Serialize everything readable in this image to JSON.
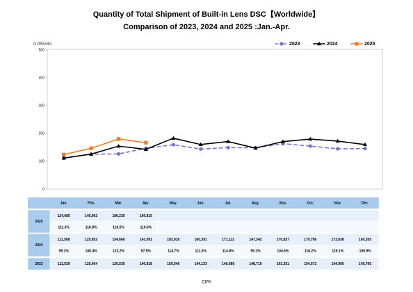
{
  "chart_data": {
    "type": "line",
    "title": "Quantity of Total Shipment of Built-in Lens DSC【Worldwide】",
    "subtitle": "Comparison of 2023, 2024 and 2025 :Jan.-Apr.",
    "y_label": "(1,000units)",
    "source": "CIPA",
    "categories": [
      "Jan.",
      "Feb.",
      "Mar.",
      "Apr.",
      "May.",
      "Jun.",
      "Jul.",
      "Aug.",
      "Sep.",
      "Oct.",
      "Nov.",
      "Dec."
    ],
    "ylim": [
      0,
      500
    ],
    "yticks": [
      0,
      100,
      200,
      300,
      400,
      500
    ],
    "grid": false,
    "legend": "top-right",
    "series": [
      {
        "name": "2023",
        "color": "#7474cc",
        "marker": "circle",
        "dashed": true,
        "values": [
          112.539,
          125.404,
          126.535,
          146.818,
          159.546,
          144.133,
          149.088,
          148.716,
          163.351,
          154.672,
          144.995,
          145.795
        ],
        "value_labels": [
          "112,539",
          "125,404",
          "126,535",
          "146,818",
          "159,546",
          "144,133",
          "149,088",
          "148,716",
          "163,351",
          "154,672",
          "144,995",
          "145,795"
        ]
      },
      {
        "name": "2024",
        "color": "#000000",
        "marker": "triangle",
        "dashed": false,
        "values": [
          111.508,
          125.852,
          154.666,
          143.091,
          183.016,
          160.391,
          171.112,
          147.342,
          170.827,
          179.766,
          172.638,
          160.205
        ],
        "value_labels": [
          "111,508",
          "125,852",
          "154,666",
          "143,091",
          "183,016",
          "160,391",
          "171,112",
          "147,342",
          "170,827",
          "179,766",
          "172,638",
          "160,205"
        ],
        "yoy_labels": [
          "99.1%",
          "100.4%",
          "122.2%",
          "97.5%",
          "114.7%",
          "111.3%",
          "114.8%",
          "99.1%",
          "104.6%",
          "116.2%",
          "119.1%",
          "109.9%"
        ]
      },
      {
        "name": "2025",
        "color": "#f07c22",
        "marker": "square",
        "dashed": false,
        "values": [
          124.085,
          146.962,
          180.235,
          166.815,
          null,
          null,
          null,
          null,
          null,
          null,
          null,
          null
        ],
        "value_labels": [
          "124,085",
          "146,962",
          "180,235",
          "166,815",
          null,
          null,
          null,
          null,
          null,
          null,
          null,
          null
        ],
        "yoy_labels": [
          "111.3%",
          "116.8%",
          "116.5%",
          "116.6%",
          null,
          null,
          null,
          null,
          null,
          null,
          null,
          null
        ]
      }
    ]
  }
}
